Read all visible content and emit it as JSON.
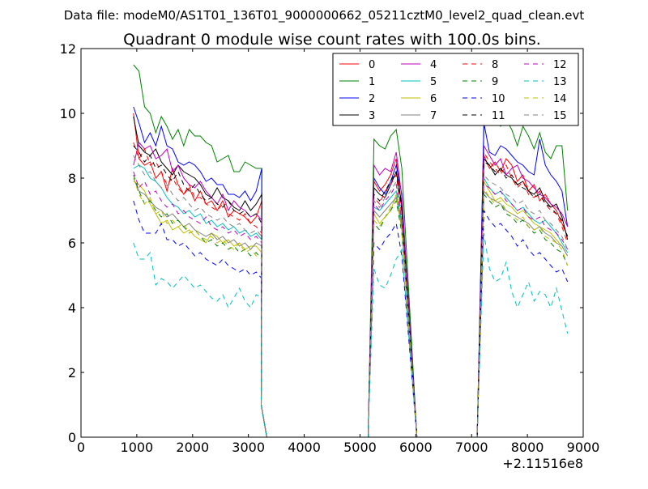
{
  "suptitle": "Data file: modeM0/AS1T01_136T01_9000000662_05211cztM0_level2_quad_clean.evt",
  "chart_data": {
    "type": "line",
    "title": "Quadrant 0 module wise count rates with 100.0s bins.",
    "xlabel": "",
    "ylabel": "",
    "x_offset_label": "+2.11516e8",
    "xlim": [
      0,
      9000
    ],
    "ylim": [
      0,
      12
    ],
    "xticks": [
      0,
      1000,
      2000,
      3000,
      4000,
      5000,
      6000,
      7000,
      8000,
      9000
    ],
    "yticks": [
      0,
      2,
      4,
      6,
      8,
      10,
      12
    ],
    "legend": {
      "placement": "top-right",
      "columns": 4
    },
    "grid": false,
    "segments": [
      {
        "x_start": 940,
        "x_step": 100,
        "gap_x": [
          3230,
          3330
        ],
        "zero_after": 3330
      },
      {
        "x_start": 5250,
        "x_step": 100,
        "gap_x": [
          5950,
          6020
        ],
        "zero_before": 5150,
        "zero_after": 6020
      },
      {
        "x_start": 7220,
        "x_step": 100,
        "zero_before": 7100
      }
    ],
    "series": [
      {
        "name": "0",
        "color": "#ff0000",
        "dash": "solid",
        "seg1": [
          10.0,
          8.6,
          8.4,
          8.5,
          8.0,
          8.2,
          7.6,
          8.3,
          7.8,
          7.5,
          7.7,
          7.3,
          7.6,
          7.2,
          7.3,
          7.0,
          7.3,
          6.8,
          7.0,
          6.9,
          6.8,
          6.6,
          6.8,
          7.3
        ],
        "seg2": [
          0.4,
          7.9,
          7.6,
          7.8,
          8.1,
          8.6,
          7.0
        ],
        "seg3": [
          8.7,
          8.3,
          8.5,
          8.2,
          8.6,
          8.4,
          7.9,
          8.1,
          7.6,
          7.8,
          7.3,
          7.5,
          7.2,
          7.0,
          6.6,
          6.2
        ]
      },
      {
        "name": "1",
        "color": "#008000",
        "dash": "solid",
        "seg1": [
          11.5,
          11.3,
          10.2,
          10.0,
          9.4,
          9.9,
          9.6,
          9.2,
          9.5,
          9.0,
          9.5,
          9.3,
          9.3,
          9.1,
          9.0,
          8.5,
          8.6,
          8.7,
          8.2,
          8.2,
          8.5,
          8.4,
          8.3,
          8.3
        ],
        "seg2": [
          0.4,
          9.2,
          9.0,
          8.9,
          9.3,
          9.5,
          8.3
        ],
        "seg3": [
          9.6,
          9.8,
          9.8,
          9.6,
          9.8,
          9.5,
          9.0,
          9.6,
          9.3,
          8.9,
          9.4,
          8.8,
          8.6,
          9.0,
          9.0,
          7.0
        ]
      },
      {
        "name": "2",
        "color": "#0000ff",
        "dash": "solid",
        "seg1": [
          10.2,
          9.7,
          9.1,
          9.4,
          9.0,
          9.6,
          9.0,
          8.9,
          8.5,
          8.4,
          8.5,
          8.4,
          8.2,
          7.9,
          8.0,
          7.8,
          7.8,
          7.5,
          7.5,
          7.4,
          7.6,
          7.3,
          7.6,
          8.3
        ],
        "seg2": [
          0.4,
          8.0,
          7.7,
          7.5,
          7.9,
          8.4,
          7.5
        ],
        "seg3": [
          9.7,
          8.8,
          8.7,
          9.0,
          8.9,
          8.7,
          8.5,
          8.4,
          8.2,
          8.1,
          9.2,
          8.4,
          8.1,
          7.9,
          7.6,
          6.5
        ]
      },
      {
        "name": "3",
        "color": "#000000",
        "dash": "solid",
        "seg1": [
          9.9,
          9.0,
          8.8,
          8.7,
          8.9,
          8.5,
          8.3,
          8.1,
          8.4,
          8.2,
          8.1,
          8.0,
          7.8,
          7.5,
          7.4,
          7.7,
          7.4,
          7.3,
          7.1,
          7.0,
          7.3,
          7.0,
          7.2,
          7.5
        ],
        "seg2": [
          0.4,
          7.7,
          7.5,
          7.4,
          7.8,
          8.2,
          7.2
        ],
        "seg3": [
          8.6,
          8.4,
          8.1,
          8.3,
          8.1,
          8.0,
          7.8,
          7.9,
          7.6,
          7.5,
          7.7,
          7.3,
          7.1,
          7.2,
          6.8,
          6.1
        ]
      },
      {
        "name": "4",
        "color": "#bf00bf",
        "dash": "solid",
        "seg1": [
          8.4,
          9.1,
          8.9,
          9.0,
          8.6,
          8.7,
          8.9,
          8.2,
          8.4,
          8.0,
          7.8,
          7.7,
          7.9,
          7.6,
          7.4,
          7.2,
          7.5,
          7.0,
          7.3,
          7.1,
          7.0,
          6.8,
          6.9,
          6.7
        ],
        "seg2": [
          0.4,
          8.4,
          8.1,
          8.3,
          8.2,
          8.8,
          7.4
        ],
        "seg3": [
          9.0,
          8.7,
          8.4,
          8.6,
          8.1,
          8.3,
          8.4,
          8.0,
          7.9,
          7.7,
          7.5,
          7.4,
          7.2,
          7.1,
          6.9,
          6.5
        ]
      },
      {
        "name": "5",
        "color": "#00bfbf",
        "dash": "solid",
        "seg1": [
          8.3,
          8.4,
          8.3,
          8.0,
          7.9,
          7.7,
          7.4,
          7.2,
          7.1,
          6.9,
          7.0,
          6.8,
          6.9,
          6.6,
          6.7,
          6.5,
          6.6,
          6.4,
          6.5,
          6.3,
          6.4,
          6.2,
          6.3,
          6.1
        ],
        "seg2": [
          0.4,
          7.1,
          7.0,
          7.2,
          7.4,
          7.6,
          6.6
        ],
        "seg3": [
          8.0,
          7.7,
          7.5,
          7.6,
          7.4,
          7.2,
          7.0,
          7.1,
          6.9,
          6.7,
          6.6,
          6.7,
          6.5,
          6.3,
          6.0,
          5.7
        ]
      },
      {
        "name": "6",
        "color": "#bfbf00",
        "dash": "solid",
        "seg1": [
          7.9,
          7.8,
          7.6,
          7.2,
          6.9,
          6.6,
          6.7,
          6.4,
          6.5,
          6.3,
          6.4,
          6.2,
          6.1,
          6.0,
          6.3,
          6.2,
          6.0,
          6.1,
          5.9,
          6.0,
          5.8,
          5.9,
          5.9,
          5.7
        ],
        "seg2": [
          0.4,
          6.9,
          6.6,
          6.8,
          7.0,
          7.5,
          6.4
        ],
        "seg3": [
          7.9,
          7.6,
          7.3,
          7.4,
          7.2,
          7.1,
          6.9,
          7.0,
          6.8,
          6.6,
          6.5,
          6.4,
          6.3,
          6.1,
          5.9,
          5.6
        ]
      },
      {
        "name": "7",
        "color": "#808080",
        "dash": "solid",
        "seg1": [
          8.0,
          7.6,
          7.5,
          7.3,
          7.1,
          7.0,
          6.8,
          6.9,
          6.7,
          6.5,
          6.6,
          6.4,
          6.3,
          6.2,
          6.3,
          6.1,
          6.2,
          6.0,
          6.1,
          5.9,
          6.0,
          5.8,
          6.0,
          5.9
        ],
        "seg2": [
          0.4,
          7.0,
          6.8,
          7.0,
          7.2,
          7.4,
          6.5
        ],
        "seg3": [
          7.6,
          7.4,
          7.3,
          7.2,
          7.0,
          6.9,
          6.8,
          6.7,
          6.6,
          6.4,
          6.5,
          6.3,
          6.2,
          6.0,
          5.9,
          5.6
        ]
      },
      {
        "name": "8",
        "color": "#ff0000",
        "dash": "dashed",
        "seg1": [
          9.1,
          8.6,
          8.9,
          8.4,
          8.5,
          8.2,
          7.8,
          8.0,
          7.7,
          7.5,
          7.8,
          7.4,
          7.4,
          7.2,
          7.1,
          7.0,
          7.2,
          6.9,
          6.8,
          6.7,
          6.9,
          6.6,
          6.5,
          6.3
        ],
        "seg2": [
          0.4,
          7.4,
          7.2,
          7.6,
          7.8,
          8.1,
          6.8
        ],
        "seg3": [
          8.8,
          8.5,
          8.3,
          8.1,
          8.4,
          8.0,
          7.7,
          7.9,
          7.5,
          7.4,
          7.6,
          7.2,
          7.0,
          6.9,
          6.5,
          6.0
        ]
      },
      {
        "name": "9",
        "color": "#008000",
        "dash": "dashed",
        "seg1": [
          8.1,
          7.6,
          7.2,
          7.3,
          7.0,
          6.8,
          6.9,
          6.6,
          6.7,
          6.5,
          6.3,
          6.4,
          6.2,
          6.0,
          6.1,
          5.9,
          6.0,
          5.8,
          5.9,
          5.7,
          5.8,
          5.6,
          5.7,
          5.5
        ],
        "seg2": [
          0.4,
          6.6,
          6.4,
          6.8,
          7.0,
          7.3,
          6.3
        ],
        "seg3": [
          7.5,
          7.3,
          7.1,
          7.2,
          6.9,
          6.8,
          6.6,
          6.7,
          6.5,
          6.3,
          6.4,
          6.1,
          6.0,
          5.8,
          5.7,
          5.3
        ]
      },
      {
        "name": "10",
        "color": "#0000ff",
        "dash": "dashed",
        "seg1": [
          7.3,
          6.7,
          6.3,
          6.3,
          6.3,
          6.6,
          6.1,
          6.1,
          5.9,
          6.0,
          5.8,
          5.6,
          5.7,
          5.5,
          5.4,
          5.3,
          5.5,
          5.3,
          5.2,
          5.1,
          5.2,
          5.0,
          5.1,
          4.9
        ],
        "seg2": [
          0.4,
          6.0,
          5.8,
          6.1,
          6.3,
          6.6,
          5.6
        ],
        "seg3": [
          7.0,
          6.7,
          6.5,
          6.6,
          6.4,
          6.2,
          5.9,
          6.1,
          5.8,
          5.6,
          5.7,
          5.5,
          5.3,
          5.1,
          5.2,
          4.8
        ]
      },
      {
        "name": "11",
        "color": "#000000",
        "dash": "dashed",
        "seg1": [
          9.0,
          8.8,
          8.5,
          8.7,
          8.3,
          8.4,
          8.1,
          7.9,
          8.2,
          7.8,
          7.6,
          7.8,
          7.5,
          7.3,
          7.4,
          7.2,
          7.1,
          7.3,
          7.0,
          6.9,
          7.0,
          6.8,
          6.9,
          6.6
        ],
        "seg2": [
          0.4,
          7.5,
          7.3,
          7.6,
          7.9,
          8.2,
          7.0
        ],
        "seg3": [
          8.5,
          8.4,
          8.2,
          8.3,
          8.0,
          8.1,
          7.8,
          7.7,
          7.6,
          7.4,
          7.5,
          7.2,
          7.1,
          6.9,
          6.7,
          6.2
        ]
      },
      {
        "name": "12",
        "color": "#bf00bf",
        "dash": "dashed",
        "seg1": [
          8.2,
          7.7,
          7.9,
          7.5,
          7.6,
          7.3,
          7.1,
          7.2,
          6.9,
          7.0,
          6.8,
          6.7,
          6.6,
          6.8,
          6.5,
          6.4,
          6.5,
          6.3,
          6.4,
          6.2,
          6.3,
          6.1,
          6.2,
          6.0
        ],
        "seg2": [
          0.4,
          7.2,
          7.0,
          7.3,
          7.5,
          7.8,
          6.7
        ],
        "seg3": [
          7.8,
          7.7,
          7.5,
          7.6,
          7.3,
          7.2,
          7.0,
          7.1,
          6.8,
          6.7,
          6.8,
          6.5,
          6.4,
          6.3,
          6.1,
          5.8
        ]
      },
      {
        "name": "13",
        "color": "#00bfbf",
        "dash": "dashed",
        "seg1": [
          6.0,
          5.5,
          5.5,
          5.7,
          4.7,
          4.9,
          4.8,
          4.6,
          4.8,
          5.0,
          4.8,
          4.6,
          4.7,
          4.5,
          4.3,
          4.2,
          4.4,
          4.0,
          4.3,
          4.6,
          4.2,
          4.0,
          4.4,
          4.3
        ],
        "seg2": [
          0.4,
          5.2,
          4.7,
          4.6,
          5.0,
          5.5,
          5.8
        ],
        "seg3": [
          6.3,
          5.2,
          4.8,
          4.9,
          5.4,
          4.5,
          4.0,
          4.4,
          4.8,
          4.2,
          4.5,
          4.4,
          4.0,
          4.6,
          3.9,
          3.2
        ]
      },
      {
        "name": "14",
        "color": "#bfbf00",
        "dash": "dashed",
        "seg1": [
          8.0,
          7.5,
          7.2,
          7.4,
          6.9,
          7.0,
          6.6,
          6.7,
          6.5,
          6.6,
          6.3,
          6.4,
          6.2,
          6.1,
          6.2,
          6.0,
          6.1,
          5.9,
          5.8,
          6.0,
          5.7,
          5.8,
          5.6,
          5.5
        ],
        "seg2": [
          0.4,
          6.7,
          6.5,
          6.8,
          7.1,
          7.4,
          6.4
        ],
        "seg3": [
          7.7,
          7.4,
          7.2,
          7.3,
          7.0,
          6.9,
          6.7,
          6.8,
          6.5,
          6.4,
          6.5,
          6.2,
          6.1,
          6.0,
          5.8,
          5.3
        ]
      },
      {
        "name": "15",
        "color": "#808080",
        "dash": "dashed",
        "seg1": [
          8.7,
          8.4,
          8.1,
          8.2,
          7.9,
          7.7,
          7.8,
          7.5,
          7.3,
          7.4,
          7.2,
          7.0,
          7.1,
          6.9,
          6.8,
          6.7,
          6.8,
          6.6,
          6.5,
          6.6,
          6.4,
          6.3,
          6.4,
          6.2
        ],
        "seg2": [
          0.4,
          7.3,
          7.1,
          7.4,
          7.6,
          7.9,
          6.8
        ],
        "seg3": [
          8.1,
          7.9,
          7.8,
          7.7,
          7.5,
          7.4,
          7.2,
          7.3,
          7.0,
          6.9,
          7.0,
          6.7,
          6.6,
          6.4,
          6.2,
          5.8
        ]
      }
    ]
  }
}
